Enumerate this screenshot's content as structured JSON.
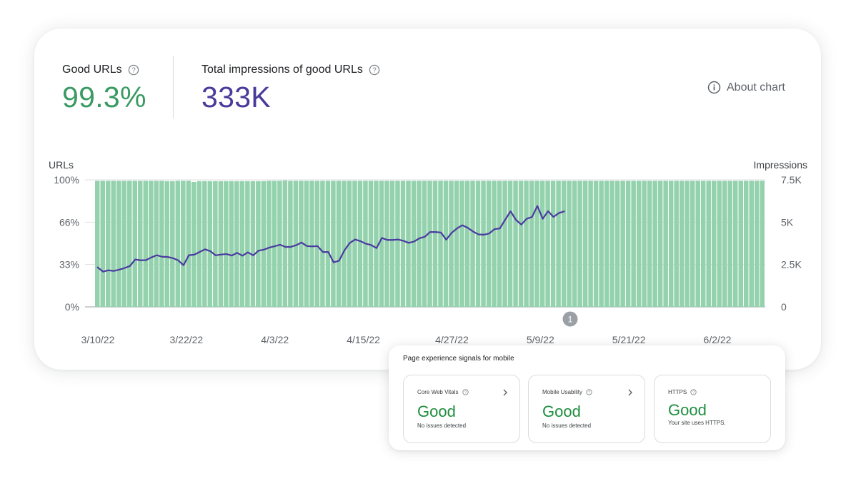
{
  "metrics": {
    "good_urls": {
      "label": "Good URLs",
      "value": "99.3%",
      "color": "#3a9a63"
    },
    "impressions": {
      "label": "Total impressions of good URLs",
      "value": "333K",
      "color": "#4b3a9a"
    }
  },
  "about_chart": {
    "label": "About chart",
    "icon": "info-icon"
  },
  "chart_data": {
    "type": "bar",
    "left_axis": {
      "label": "URLs",
      "ticks": [
        "100%",
        "66%",
        "33%",
        "0%"
      ],
      "range": [
        0,
        100
      ]
    },
    "right_axis": {
      "label": "Impressions",
      "ticks": [
        "7.5K",
        "5K",
        "2.5K",
        "0"
      ],
      "range": [
        0,
        7500
      ]
    },
    "x_tick_labels": [
      "3/10/22",
      "3/22/22",
      "4/3/22",
      "4/15/22",
      "4/27/22",
      "5/9/22",
      "5/21/22",
      "6/2/22"
    ],
    "grid": true,
    "annotation": "1",
    "series": [
      {
        "type": "bar",
        "axis": "left",
        "color": "#93d2ad",
        "values": [
          99.3,
          99.3,
          99.3,
          99.3,
          99.3,
          99.3,
          99.3,
          99.3,
          99.3,
          99.3,
          99.3,
          99.3,
          99.3,
          99,
          99,
          99.3,
          99.3,
          99.3,
          98.3,
          99,
          99,
          99,
          99,
          99,
          99,
          99,
          99,
          99,
          99,
          99,
          99,
          99,
          99.3,
          99.3,
          99.3,
          99.6,
          99.3,
          99.3,
          99.3,
          99.3,
          99.3,
          99.3,
          99.3,
          99.3,
          99.3,
          99.3,
          99.3,
          99.3,
          99.3,
          99.3,
          99.3,
          99.3,
          99.3,
          99.3,
          99.3,
          99.3,
          99.3,
          99.3,
          99.3,
          99.3,
          99.3,
          99.3,
          99.3,
          99.3,
          99.3,
          99.3,
          99.3,
          99.3,
          99.3,
          99.3,
          99.3,
          99.3,
          99.3,
          99.3,
          99.3,
          99.3,
          99.3,
          99.3,
          99.3,
          99.3,
          99.3,
          99.3,
          99.3,
          99.3,
          99.3,
          99.3,
          99.3,
          99.3,
          99.3,
          99.3,
          99.3,
          99.3,
          99.3,
          99.3,
          99.3,
          99.3,
          99.3,
          99.3,
          99.3,
          99.3,
          99.3,
          99.3,
          99.3,
          99.3,
          99.3,
          99.3,
          99.3,
          99.3,
          99.3,
          99.3,
          99.3,
          99.3,
          99.3,
          99.3,
          99.3,
          99.3,
          99.3,
          99.3,
          99.3,
          99.3,
          99.3,
          99.3,
          99.3,
          99.3,
          99.3
        ]
      },
      {
        "type": "line",
        "axis": "right",
        "color": "#4b3aa0",
        "values": [
          2330,
          2080,
          2160,
          2120,
          2200,
          2290,
          2410,
          2800,
          2750,
          2760,
          2920,
          3050,
          2960,
          2950,
          2880,
          2750,
          2460,
          3050,
          3080,
          3240,
          3400,
          3290,
          3040,
          3090,
          3120,
          3030,
          3190,
          3020,
          3220,
          3040,
          3320,
          3380,
          3500,
          3580,
          3670,
          3540,
          3540,
          3640,
          3800,
          3590,
          3570,
          3590,
          3240,
          3240,
          2630,
          2720,
          3330,
          3770,
          3980,
          3880,
          3730,
          3650,
          3470,
          4070,
          3950,
          3950,
          3980,
          3900,
          3780,
          3860,
          4050,
          4140,
          4420,
          4420,
          4390,
          3970,
          4370,
          4630,
          4820,
          4670,
          4450,
          4280,
          4260,
          4330,
          4590,
          4630,
          5150,
          5640,
          5140,
          4860,
          5200,
          5310,
          5960,
          5200,
          5650,
          5310,
          5540,
          5640
        ]
      }
    ]
  },
  "mobile_panel": {
    "title": "Page experience signals for mobile",
    "cards": [
      {
        "title": "Core Web Vitals",
        "value": "Good",
        "desc": "No issues detected",
        "has_chevron": true
      },
      {
        "title": "Mobile Usability",
        "value": "Good",
        "desc": "No issues detected",
        "has_chevron": true
      },
      {
        "title": "HTTPS",
        "value": "Good",
        "desc": "Your site uses HTTPS.",
        "has_chevron": false
      }
    ]
  }
}
